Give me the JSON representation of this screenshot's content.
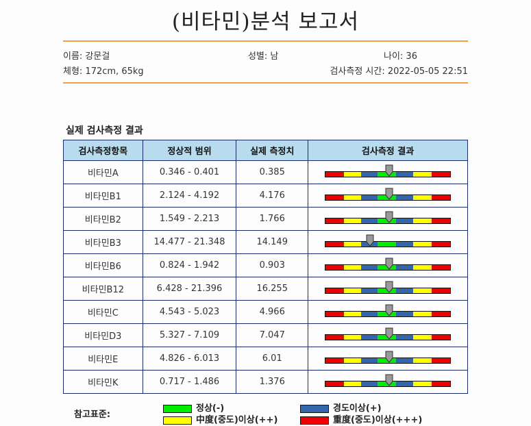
{
  "title": "(비타민)분석 보고서",
  "patient": {
    "name": "이름: 강문걸",
    "gender": "성별: 남",
    "age": "나이: 36",
    "body": "체형: 172cm, 65kg",
    "test_time": "검사측정 시간: 2022-05-05 22:51"
  },
  "section_title": "실제 검사측정 결과",
  "table": {
    "headers": [
      "검사측정항목",
      "정상적 범위",
      "실제 측정치",
      "검사측정 결과"
    ],
    "rows": [
      {
        "item": "비타민A",
        "range": "0.346 - 0.401",
        "value": "0.385",
        "level": 0.51
      },
      {
        "item": "비타민B1",
        "range": "2.124 - 4.192",
        "value": "4.176",
        "level": 0.51
      },
      {
        "item": "비타민B2",
        "range": "1.549 - 2.213",
        "value": "1.766",
        "level": 0.51
      },
      {
        "item": "비타민B3",
        "range": "14.477 - 21.348",
        "value": "14.149",
        "level": 0.36
      },
      {
        "item": "비타민B6",
        "range": "0.824 - 1.942",
        "value": "0.903",
        "level": 0.51
      },
      {
        "item": "비타민B12",
        "range": "6.428 - 21.396",
        "value": "16.255",
        "level": 0.51
      },
      {
        "item": "비타민C",
        "range": "4.543 - 5.023",
        "value": "4.966",
        "level": 0.51
      },
      {
        "item": "비타민D3",
        "range": "5.327 - 7.109",
        "value": "7.047",
        "level": 0.51
      },
      {
        "item": "비타민E",
        "range": "4.826 - 6.013",
        "value": "6.01",
        "level": 0.51
      },
      {
        "item": "비타민K",
        "range": "0.717 - 1.486",
        "value": "1.376",
        "level": 0.51
      }
    ]
  },
  "legend": {
    "label": "참고표준:",
    "items": [
      {
        "text": "정상(-)",
        "color": "#00ee00"
      },
      {
        "text": "경도이상(+)",
        "color": "#3366aa"
      },
      {
        "text": "中度(중도)이상(++)",
        "color": "#ffff00"
      },
      {
        "text": "重度(중도)이상(+++)",
        "color": "#ee0000"
      }
    ]
  },
  "colors": {
    "accent_rule": "#f0a040",
    "header_bg": "#b8dcee",
    "border": "#1a2a6a",
    "pointer": "#999999"
  }
}
